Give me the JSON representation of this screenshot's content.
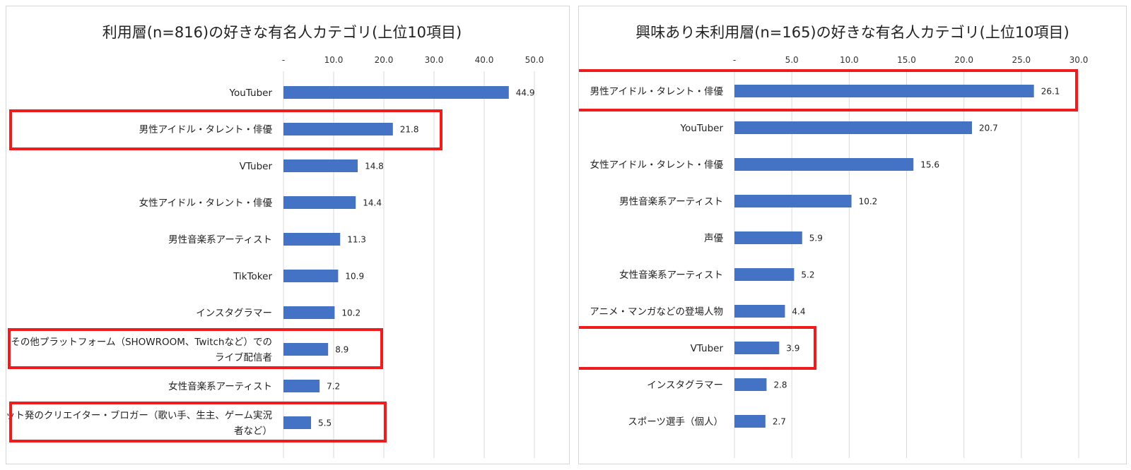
{
  "colors": {
    "bar": "#4472c4",
    "highlight": "#ee1c1c",
    "grid": "#d9d9d9"
  },
  "chart_data": [
    {
      "type": "bar",
      "orientation": "horizontal",
      "title": "利用層(n=816)の好きな有名人カテゴリ(上位10項目)",
      "xlim": [
        0,
        50
      ],
      "tick_labels": [
        "-",
        "10.0",
        "20.0",
        "30.0",
        "40.0",
        "50.0"
      ],
      "grid": true,
      "categories": [
        [
          "YouTuber"
        ],
        [
          "男性アイドル・タレント・俳優"
        ],
        [
          "VTuber"
        ],
        [
          "女性アイドル・タレント・俳優"
        ],
        [
          "男性音楽系アーティスト"
        ],
        [
          "TikToker"
        ],
        [
          "インスタグラマー"
        ],
        [
          "その他プラットフォーム（SHOWROOM、Twitchなど）での",
          "ライブ配信者"
        ],
        [
          "女性音楽系アーティスト"
        ],
        [
          "ネット発のクリエイター・ブロガー（歌い手、生主、ゲーム実況",
          "者など）"
        ]
      ],
      "values": [
        44.9,
        21.8,
        14.8,
        14.4,
        11.3,
        10.9,
        10.2,
        8.9,
        7.2,
        5.5
      ],
      "value_labels": [
        "44.9",
        "21.8",
        "14.8",
        "14.4",
        "11.3",
        "10.9",
        "10.2",
        "8.9",
        "7.2",
        "5.5"
      ],
      "highlighted": [
        "男性アイドル・タレント・俳優",
        "その他プラットフォーム（SHOWROOM、Twitchなど）でのライブ配信者",
        "ネット発のクリエイター・ブロガー（歌い手、生主、ゲーム実況者など）"
      ]
    },
    {
      "type": "bar",
      "orientation": "horizontal",
      "title": "興味あり未利用層(n=165)の好きな有名人カテゴリ(上位10項目)",
      "xlim": [
        0,
        30
      ],
      "tick_labels": [
        "-",
        "5.0",
        "10.0",
        "15.0",
        "20.0",
        "25.0",
        "30.0"
      ],
      "grid": true,
      "categories": [
        [
          "男性アイドル・タレント・俳優"
        ],
        [
          "YouTuber"
        ],
        [
          "女性アイドル・タレント・俳優"
        ],
        [
          "男性音楽系アーティスト"
        ],
        [
          "声優"
        ],
        [
          "女性音楽系アーティスト"
        ],
        [
          "アニメ・マンガなどの登場人物"
        ],
        [
          "VTuber"
        ],
        [
          "インスタグラマー"
        ],
        [
          "スポーツ選手（個人）"
        ]
      ],
      "values": [
        26.1,
        20.7,
        15.6,
        10.2,
        5.9,
        5.2,
        4.4,
        3.9,
        2.8,
        2.7
      ],
      "value_labels": [
        "26.1",
        "20.7",
        "15.6",
        "10.2",
        "5.9",
        "5.2",
        "4.4",
        "3.9",
        "2.8",
        "2.7"
      ],
      "highlighted": [
        "男性アイドル・タレント・俳優",
        "VTuber"
      ]
    }
  ]
}
